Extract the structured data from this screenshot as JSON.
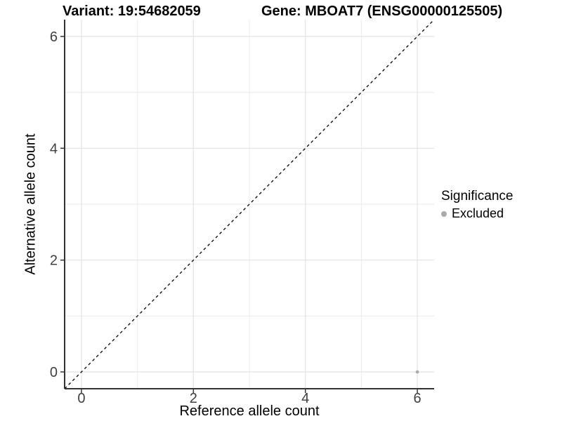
{
  "chart_data": {
    "type": "scatter",
    "title_left": "Variant: 19:54682059",
    "title_right": "Gene: MBOAT7 (ENSG00000125505)",
    "xlabel": "Reference allele count",
    "ylabel": "Alternative allele count",
    "xlim": [
      -0.3,
      6.3
    ],
    "ylim": [
      -0.3,
      6.3
    ],
    "x_ticks": [
      0,
      2,
      4,
      6
    ],
    "y_ticks": [
      0,
      2,
      4,
      6
    ],
    "x_minor": [
      1,
      3,
      5
    ],
    "y_minor": [
      1,
      3,
      5
    ],
    "grid": true,
    "reference_line": {
      "type": "identity",
      "x1": -0.3,
      "y1": -0.3,
      "x2": 6.3,
      "y2": 6.3,
      "style": "dashed",
      "color": "#000000"
    },
    "series": [
      {
        "name": "Excluded",
        "color": "#ababab",
        "points": [
          [
            6,
            0
          ]
        ]
      }
    ],
    "legend": {
      "title": "Significance",
      "position": "right",
      "items": [
        {
          "label": "Excluded",
          "color": "#aaaaaa",
          "marker": "circle"
        }
      ]
    },
    "colors": {
      "axis_line": "#333333",
      "tick_mark": "#333333",
      "tick_text": "#404040",
      "grid_major": "#e3e3e3",
      "grid_minor": "#eeeeee",
      "background": "#ffffff"
    }
  }
}
